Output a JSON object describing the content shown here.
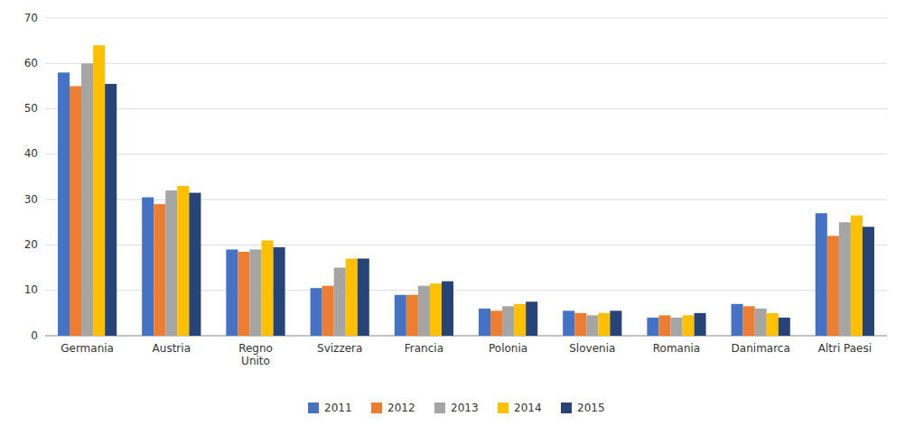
{
  "chart_data": {
    "type": "bar",
    "categories": [
      "Germania",
      "Austria",
      "Regno\nUnito",
      "Svizzera",
      "Francia",
      "Polonia",
      "Slovenia",
      "Romania",
      "Danimarca",
      "Altri Paesi"
    ],
    "series": [
      {
        "name": "2011",
        "color": "#4472C4",
        "values": [
          58,
          30.5,
          19,
          10.5,
          9,
          6,
          5.5,
          4,
          7,
          27
        ]
      },
      {
        "name": "2012",
        "color": "#ED7D31",
        "values": [
          55,
          29,
          18.5,
          11,
          9,
          5.5,
          5,
          4.5,
          6.5,
          22
        ]
      },
      {
        "name": "2013",
        "color": "#A5A5A5",
        "values": [
          60,
          32,
          19,
          15,
          11,
          6.5,
          4.5,
          4,
          6,
          25
        ]
      },
      {
        "name": "2014",
        "color": "#FFC000",
        "values": [
          64,
          33,
          21,
          17,
          11.5,
          7,
          5,
          4.5,
          5,
          26.5
        ]
      },
      {
        "name": "2015",
        "color": "#264478",
        "values": [
          55.5,
          31.5,
          19.5,
          17,
          12,
          7.5,
          5.5,
          5,
          4,
          24
        ]
      }
    ],
    "ylim": [
      0,
      70
    ],
    "yticks": [
      0,
      10,
      20,
      30,
      40,
      50,
      60,
      70
    ],
    "grid": true,
    "legend": "bottom"
  }
}
